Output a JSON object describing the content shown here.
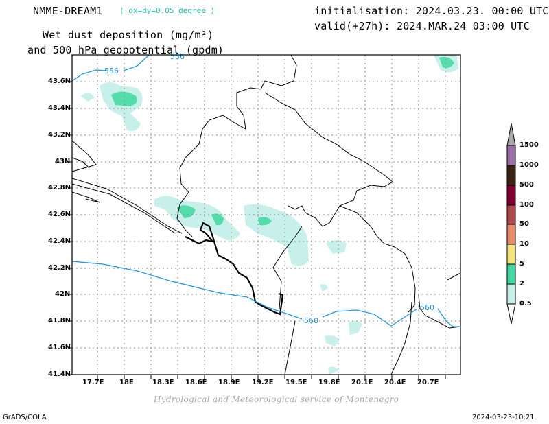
{
  "header": {
    "model": "NMME-DREAM1",
    "resolution": "( dx=dy=0.05 degree )",
    "title_line1": "Wet dust deposition (mg/m²)",
    "title_line2": "and 500 hPa geopotential (gpdm)",
    "init": "initialisation: 2024.03.23. 00:00 UTC",
    "valid": "valid(+27h): 2024.MAR.24 03:00 UTC"
  },
  "map": {
    "lon_range": [
      17.55,
      21.0
    ],
    "lat_range": [
      41.4,
      43.75
    ],
    "lon_ticks": [
      "17.7E",
      "18E",
      "18.3E",
      "18.6E",
      "18.9E",
      "19.2E",
      "19.5E",
      "19.8E",
      "20.1E",
      "20.4E",
      "20.7E"
    ],
    "lat_ticks": [
      "43.6N",
      "43.4N",
      "43.2N",
      "43N",
      "42.8N",
      "42.6N",
      "42.4N",
      "42.2N",
      "42N",
      "41.8N",
      "41.6N",
      "41.4N"
    ],
    "contour_labels": [
      "556",
      "556",
      "560",
      "560"
    ],
    "contour_color": "#1e96e6",
    "grid": true
  },
  "colorbar": {
    "levels": [
      "1500",
      "1000",
      "500",
      "100",
      "50",
      "10",
      "5",
      "2",
      "0.5"
    ],
    "colors": [
      "#9a6fa8",
      "#3b2412",
      "#820030",
      "#b04a4a",
      "#e88a6a",
      "#f4e47a",
      "#3fd8a0",
      "#c8f0ea"
    ]
  },
  "footer": {
    "credit": "Hydrological and Meteorological service of Montenegro",
    "software": "GrADS/COLA",
    "timestamp": "2024-03-23-10:21"
  }
}
